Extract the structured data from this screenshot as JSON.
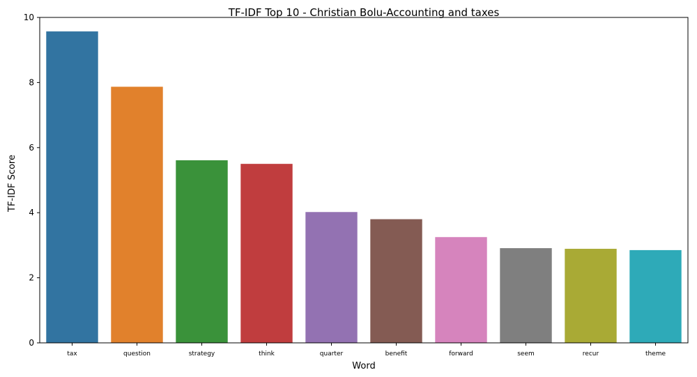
{
  "chart_data": {
    "type": "bar",
    "title": "TF-IDF Top 10 - Christian Bolu-Accounting and taxes",
    "xlabel": "Word",
    "ylabel": "TF-IDF Score",
    "categories": [
      "tax",
      "question",
      "strategy",
      "think",
      "quarter",
      "benefit",
      "forward",
      "seem",
      "recur",
      "theme"
    ],
    "values": [
      9.57,
      7.87,
      5.61,
      5.5,
      4.02,
      3.8,
      3.25,
      2.91,
      2.89,
      2.85
    ],
    "colors": [
      "#3274a1",
      "#e1812c",
      "#3a923a",
      "#c03d3e",
      "#9372b2",
      "#845b53",
      "#d684bd",
      "#7f7f7f",
      "#a9aa35",
      "#2eaab8"
    ],
    "ylim": [
      0,
      10
    ],
    "yticks": [
      0,
      2,
      4,
      6,
      8,
      10
    ],
    "grid": false,
    "legend": "none"
  }
}
